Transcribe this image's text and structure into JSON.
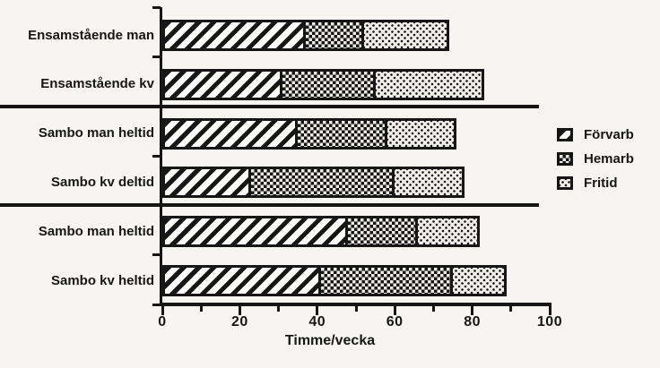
{
  "colors": {
    "ink": "#161616",
    "background": "#f6f5f2"
  },
  "chart_data": {
    "type": "bar",
    "orientation": "horizontal",
    "stacked": true,
    "title": "",
    "xlabel": "Timme/vecka",
    "ylabel": "",
    "xlim": [
      0,
      100
    ],
    "xticks": [
      0,
      20,
      40,
      60,
      80,
      100
    ],
    "minor_tick_step": 10,
    "grid": false,
    "legend_position": "right",
    "categories": [
      "Ensamstående man",
      "Ensamstående kv",
      "Sambo man heltid",
      "Sambo kv deltid",
      "Sambo man heltid",
      "Sambo kv heltid"
    ],
    "series": [
      {
        "name": "Förvarb",
        "pattern": "diagonal-hatch",
        "values": [
          37,
          31,
          35,
          23,
          48,
          41
        ]
      },
      {
        "name": "Hemarb",
        "pattern": "dark-checker",
        "values": [
          15,
          24,
          23,
          37,
          18,
          34
        ]
      },
      {
        "name": "Fritid",
        "pattern": "light-dots",
        "values": [
          22,
          28,
          18,
          18,
          16,
          14
        ]
      }
    ],
    "stack_totals": [
      74,
      83,
      76,
      78,
      82,
      89
    ],
    "group_separators_after_category_index": [
      1,
      3
    ]
  }
}
